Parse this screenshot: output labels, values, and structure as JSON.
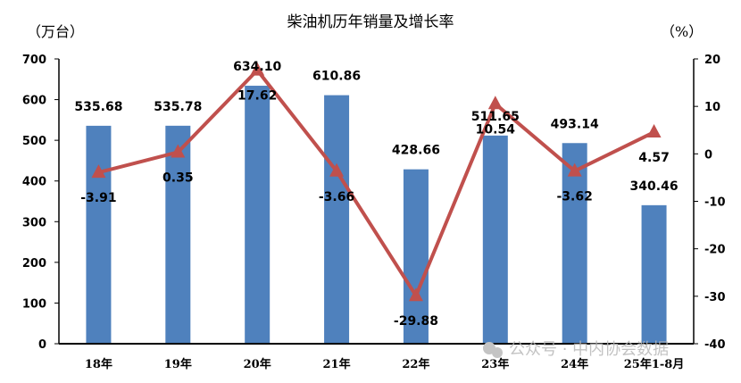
{
  "chart_data": {
    "type": "bar+line",
    "title": "柴油机历年销量及增长率",
    "left_unit": "（万台）",
    "right_unit": "（%）",
    "categories": [
      "18年",
      "19年",
      "20年",
      "21年",
      "22年",
      "23年",
      "24年",
      "25年1-8月"
    ],
    "series": [
      {
        "type": "bar",
        "axis": "left",
        "color": "#4f81bd",
        "values": [
          535.68,
          535.78,
          634.1,
          610.86,
          428.66,
          511.65,
          493.14,
          340.46
        ],
        "labels": [
          "535.68",
          "535.78",
          "634.10",
          "610.86",
          "428.66",
          "511.65",
          "493.14",
          "340.46"
        ]
      },
      {
        "type": "line",
        "axis": "right",
        "color": "#c0504d",
        "marker": "triangle",
        "values": [
          -3.91,
          0.35,
          17.62,
          -3.66,
          -29.88,
          10.54,
          -3.62,
          4.57
        ],
        "labels": [
          "-3.91",
          "0.35",
          "17.62",
          "-3.66",
          "-29.88",
          "10.54",
          "-3.62",
          "4.57"
        ]
      }
    ],
    "ylim_left": [
      0,
      700
    ],
    "yticks_left": [
      "0",
      "100",
      "200",
      "300",
      "400",
      "500",
      "600",
      "700"
    ],
    "ylim_right": [
      -40,
      20
    ],
    "yticks_right": [
      "-40",
      "-30",
      "-20",
      "-10",
      "0",
      "10",
      "20"
    ],
    "grid": false,
    "legend": "none"
  },
  "watermark": "公众号 · 中内协会数据"
}
